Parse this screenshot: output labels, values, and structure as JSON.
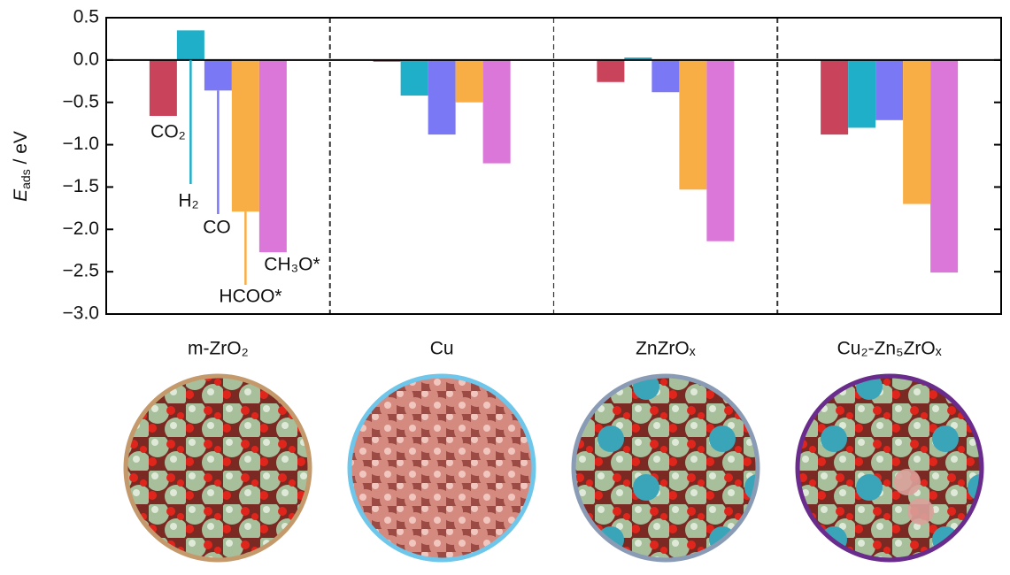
{
  "chart_data": {
    "type": "bar",
    "y_label": {
      "symbol": "E",
      "subscript": "ads",
      "unit": " / eV"
    },
    "categories": [
      "m-ZrO₂",
      "Cu",
      "ZnZrOₓ",
      "Cu₂-Zn₅ZrOₓ"
    ],
    "series": [
      {
        "name": "CO₂",
        "color": "#c9435a",
        "values": [
          -0.66,
          -0.02,
          -0.26,
          -0.88
        ]
      },
      {
        "name": "H₂",
        "color": "#1fafc8",
        "values": [
          0.35,
          -0.42,
          0.03,
          -0.8
        ]
      },
      {
        "name": "CO",
        "color": "#7b78f5",
        "values": [
          -0.36,
          -0.88,
          -0.38,
          -0.71
        ]
      },
      {
        "name": "HCOO*",
        "color": "#f9ae45",
        "values": [
          -1.79,
          -0.5,
          -1.53,
          -1.7
        ]
      },
      {
        "name": "CH₃O*",
        "color": "#db77d8",
        "values": [
          -2.27,
          -1.22,
          -2.14,
          -2.51
        ]
      }
    ],
    "ylim": [
      -3.0,
      0.5
    ],
    "yticks": [
      0.5,
      {
        "value": 0,
        "label": "0.0"
      },
      {
        "value": -0.5,
        "label": "−0.5"
      },
      {
        "value": -1,
        "label": "−1.0"
      },
      {
        "value": -1.5,
        "label": "−1.5"
      },
      {
        "value": -2,
        "label": "−2.0"
      },
      {
        "value": -2.5,
        "label": "−2.5"
      },
      {
        "value": -3,
        "label": "−3.0"
      }
    ]
  }
}
